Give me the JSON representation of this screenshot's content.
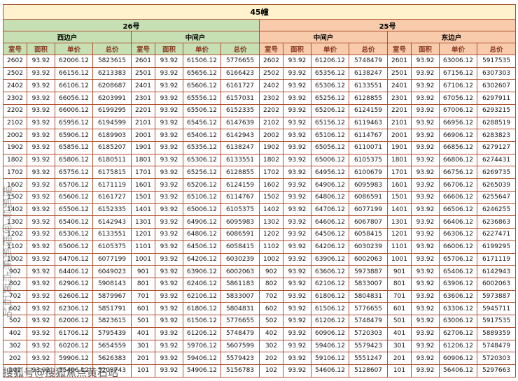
{
  "title": "45幢",
  "watermark": {
    "text": "搜狐号@搜狐焦点黄石站"
  },
  "colors": {
    "title_bg": "#fff2cc",
    "section_26_bg": "#c6e0b4",
    "section_25_bg": "#f8cbad",
    "grid_border": "#b05030",
    "header_text": "#8a3a20"
  },
  "table": {
    "building_groups": [
      {
        "label": "26号",
        "units": [
          "西边户",
          "中间户"
        ]
      },
      {
        "label": "25号",
        "units": [
          "中间户",
          "东边户"
        ]
      }
    ],
    "column_headers": [
      "室号",
      "面积",
      "单价",
      "总价"
    ],
    "rows": [
      [
        "2602",
        "93.92",
        "62006.12",
        "5823615",
        "2601",
        "93.92",
        "61506.12",
        "5776655",
        "2602",
        "93.92",
        "61206.12",
        "5748479",
        "2601",
        "93.92",
        "63006.12",
        "5917535"
      ],
      [
        "2502",
        "93.92",
        "66156.12",
        "6213383",
        "2501",
        "93.92",
        "65656.12",
        "6166423",
        "2502",
        "93.92",
        "65356.12",
        "6138247",
        "2501",
        "93.92",
        "67156.12",
        "6307303"
      ],
      [
        "2402",
        "93.92",
        "66106.12",
        "6208687",
        "2401",
        "93.92",
        "65606.12",
        "6161727",
        "2402",
        "93.92",
        "65306.12",
        "6133551",
        "2401",
        "93.92",
        "67106.12",
        "6302607"
      ],
      [
        "2302",
        "93.92",
        "66056.12",
        "6203991",
        "2301",
        "93.92",
        "65556.12",
        "6157031",
        "2302",
        "93.92",
        "65256.12",
        "6128855",
        "2301",
        "93.92",
        "67056.12",
        "6297911"
      ],
      [
        "2202",
        "93.92",
        "66006.12",
        "6199295",
        "2201",
        "93.92",
        "65506.12",
        "6152335",
        "2202",
        "93.92",
        "65206.12",
        "6124159",
        "2201",
        "93.92",
        "67006.12",
        "6293215"
      ],
      [
        "2102",
        "93.92",
        "65956.12",
        "6194599",
        "2101",
        "93.92",
        "65456.12",
        "6147639",
        "2102",
        "93.92",
        "65156.12",
        "6119463",
        "2101",
        "93.92",
        "66956.12",
        "6288519"
      ],
      [
        "2002",
        "93.92",
        "65906.12",
        "6189903",
        "2001",
        "93.92",
        "65406.12",
        "6142943",
        "2002",
        "93.92",
        "65106.12",
        "6114767",
        "2001",
        "93.92",
        "66906.12",
        "6283823"
      ],
      [
        "1902",
        "93.92",
        "65856.12",
        "6185207",
        "1901",
        "93.92",
        "65356.12",
        "6138247",
        "1902",
        "93.92",
        "65056.12",
        "6110071",
        "1901",
        "93.92",
        "66856.12",
        "6279127"
      ],
      [
        "1802",
        "93.92",
        "65806.12",
        "6180511",
        "1801",
        "93.92",
        "65306.12",
        "6133551",
        "1802",
        "93.92",
        "65006.12",
        "6105375",
        "1801",
        "93.92",
        "66806.12",
        "6274431"
      ],
      [
        "1702",
        "93.92",
        "65756.12",
        "6175815",
        "1701",
        "93.92",
        "65256.12",
        "6128855",
        "1702",
        "93.92",
        "64956.12",
        "6100679",
        "1701",
        "93.92",
        "66756.12",
        "6269735"
      ],
      [
        "1602",
        "93.92",
        "65706.12",
        "6171119",
        "1601",
        "93.92",
        "65206.12",
        "6124159",
        "1602",
        "93.92",
        "64906.12",
        "6095983",
        "1601",
        "93.92",
        "66706.12",
        "6265039"
      ],
      [
        "1502",
        "93.92",
        "65606.12",
        "6161727",
        "1501",
        "93.92",
        "65106.12",
        "6114767",
        "1502",
        "93.92",
        "64806.12",
        "6086591",
        "1501",
        "93.92",
        "66606.12",
        "6255647"
      ],
      [
        "1402",
        "93.92",
        "65506.12",
        "6152335",
        "1401",
        "93.92",
        "65006.12",
        "6105375",
        "1402",
        "93.92",
        "64706.12",
        "6077199",
        "1401",
        "93.92",
        "66506.12",
        "6246255"
      ],
      [
        "1302",
        "93.92",
        "65406.12",
        "6142943",
        "1301",
        "93.92",
        "64906.12",
        "6095983",
        "1302",
        "93.92",
        "64606.12",
        "6067807",
        "1301",
        "93.92",
        "66406.12",
        "6236863"
      ],
      [
        "1202",
        "93.92",
        "65306.12",
        "6133551",
        "1201",
        "93.92",
        "64806.12",
        "6086591",
        "1202",
        "93.92",
        "64506.12",
        "6058415",
        "1201",
        "93.92",
        "66306.12",
        "6227471"
      ],
      [
        "1102",
        "93.92",
        "65006.12",
        "6105375",
        "1101",
        "93.92",
        "64506.12",
        "6058415",
        "1102",
        "93.92",
        "64206.12",
        "6030239",
        "1101",
        "93.92",
        "66006.12",
        "6199295"
      ],
      [
        "1002",
        "93.92",
        "64706.12",
        "6077199",
        "1001",
        "93.92",
        "64206.12",
        "6030239",
        "1002",
        "93.92",
        "63906.12",
        "6002063",
        "1001",
        "93.92",
        "65706.12",
        "6171119"
      ],
      [
        "902",
        "93.92",
        "64406.12",
        "6049023",
        "901",
        "93.92",
        "63906.12",
        "6002063",
        "902",
        "93.92",
        "63606.12",
        "5973887",
        "901",
        "93.92",
        "65406.12",
        "6142943"
      ],
      [
        "802",
        "93.92",
        "62906.12",
        "5908143",
        "801",
        "93.92",
        "62406.12",
        "5861183",
        "802",
        "93.92",
        "62106.12",
        "5833007",
        "801",
        "93.92",
        "63906.12",
        "6002063"
      ],
      [
        "702",
        "93.92",
        "62606.12",
        "5879967",
        "701",
        "93.92",
        "62106.12",
        "5833007",
        "702",
        "93.92",
        "61806.12",
        "5804831",
        "701",
        "93.92",
        "63606.12",
        "5973887"
      ],
      [
        "602",
        "93.92",
        "62306.12",
        "5851791",
        "601",
        "93.92",
        "61806.12",
        "5804831",
        "602",
        "93.92",
        "61506.12",
        "5776655",
        "601",
        "93.92",
        "63306.12",
        "5945711"
      ],
      [
        "502",
        "93.92",
        "62006.12",
        "5823615",
        "501",
        "93.92",
        "61506.12",
        "5776655",
        "502",
        "93.92",
        "61206.12",
        "5748479",
        "501",
        "93.92",
        "63006.12",
        "5917535"
      ],
      [
        "402",
        "93.92",
        "61706.12",
        "5795439",
        "401",
        "93.92",
        "61206.12",
        "5748479",
        "402",
        "93.92",
        "60906.12",
        "5720303",
        "401",
        "93.92",
        "62706.12",
        "5889359"
      ],
      [
        "302",
        "93.92",
        "60206.12",
        "5654559",
        "301",
        "93.92",
        "59706.12",
        "5607599",
        "302",
        "93.92",
        "59406.12",
        "5579423",
        "301",
        "93.92",
        "61206.12",
        "5748479"
      ],
      [
        "202",
        "93.92",
        "59906.12",
        "5626383",
        "201",
        "93.92",
        "59406.12",
        "5579423",
        "202",
        "93.92",
        "59106.12",
        "5551247",
        "201",
        "93.92",
        "60906.12",
        "5720303"
      ],
      [
        "102",
        "93.92",
        "55406.12",
        "5203743",
        "101",
        "93.92",
        "54906.12",
        "5156783",
        "102",
        "93.92",
        "54606.12",
        "5128607",
        "101",
        "93.92",
        "56406.12",
        "5297663"
      ]
    ]
  }
}
